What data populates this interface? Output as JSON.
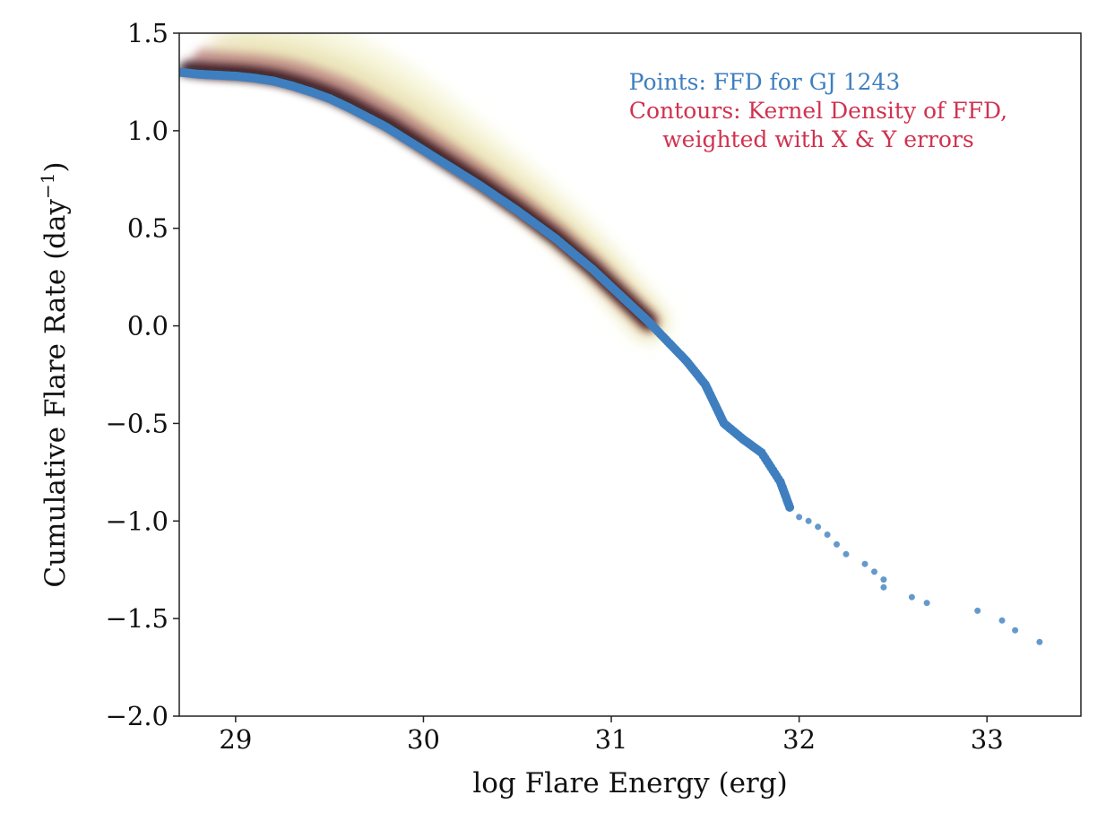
{
  "chart_data": {
    "type": "scatter",
    "xlabel": "log Flare Energy (erg)",
    "ylabel": "Cumulative Flare Rate (day",
    "ylabel_sup": "−1",
    "ylabel_close": ")",
    "xlim": [
      28.7,
      33.5
    ],
    "ylim": [
      -2.0,
      1.5
    ],
    "x_ticks": [
      29,
      30,
      31,
      32,
      33
    ],
    "y_ticks": [
      1.5,
      1.0,
      0.5,
      0.0,
      -0.5,
      -1.0,
      -1.5,
      -2.0
    ],
    "x_tick_labels": [
      "29",
      "30",
      "31",
      "32",
      "33"
    ],
    "y_tick_labels": [
      "1.5",
      "1.0",
      "0.5",
      "0.0",
      "−0.5",
      "−1.0",
      "−1.5",
      "−2.0"
    ],
    "grid": false,
    "annotations": [
      {
        "text": "Points: FFD for GJ 1243",
        "color": "#3f7fbf"
      },
      {
        "text": "Contours: Kernel Density of FFD,",
        "color": "#d0324f"
      },
      {
        "text": "weighted with X & Y errors",
        "color": "#d0324f"
      }
    ],
    "point_color": "#3f7fbf",
    "series": [
      {
        "x": [
          28.7,
          28.8,
          28.9,
          29.0,
          29.1,
          29.2,
          29.3,
          29.4,
          29.5,
          29.6,
          29.7,
          29.8,
          29.9,
          30.0,
          30.1,
          30.2,
          30.3,
          30.4,
          30.5,
          30.6,
          30.7,
          30.8,
          30.9,
          31.0,
          31.1,
          31.2,
          31.3,
          31.4,
          31.5,
          31.55,
          31.6,
          31.7,
          31.8,
          31.9,
          31.95,
          32.0,
          32.05,
          32.1,
          32.15,
          32.2,
          32.25,
          32.35,
          32.4,
          32.45,
          32.45,
          32.6,
          32.68,
          32.95,
          33.08,
          33.15,
          33.28
        ],
        "y": [
          1.3,
          1.29,
          1.285,
          1.28,
          1.27,
          1.255,
          1.23,
          1.2,
          1.165,
          1.12,
          1.07,
          1.02,
          0.96,
          0.9,
          0.84,
          0.78,
          0.72,
          0.655,
          0.59,
          0.52,
          0.45,
          0.37,
          0.29,
          0.2,
          0.11,
          0.02,
          -0.08,
          -0.18,
          -0.3,
          -0.4,
          -0.5,
          -0.58,
          -0.65,
          -0.8,
          -0.93,
          -0.98,
          -1.0,
          -1.03,
          -1.07,
          -1.12,
          -1.17,
          -1.22,
          -1.26,
          -1.3,
          -1.34,
          -1.39,
          -1.42,
          -1.46,
          -1.51,
          -1.56,
          -1.62
        ]
      }
    ]
  }
}
